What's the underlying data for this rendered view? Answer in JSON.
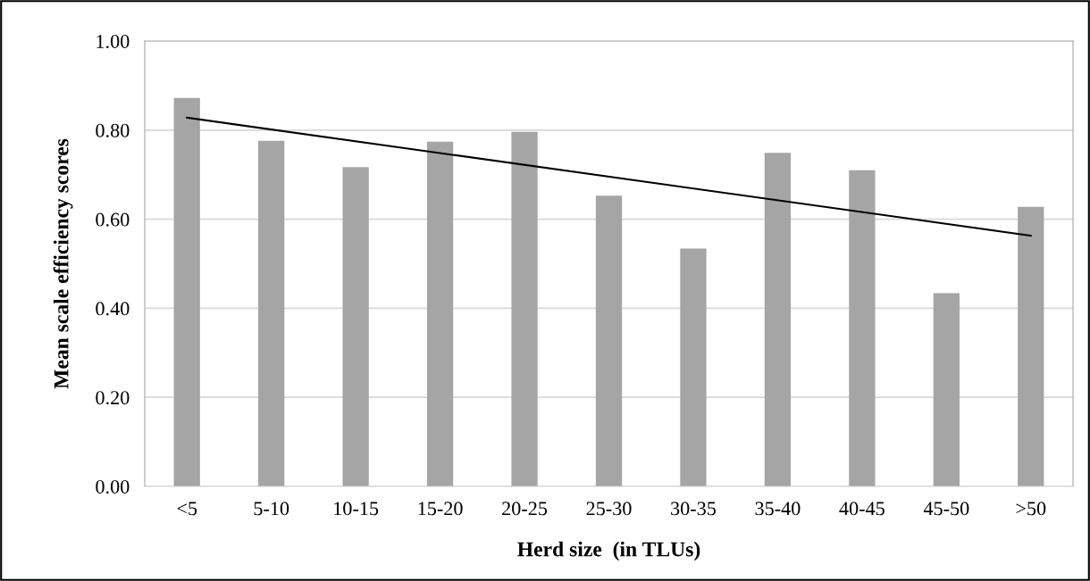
{
  "chart_data": {
    "type": "bar",
    "xlabel": "Herd size  (in TLUs)",
    "ylabel": "Mean scale efficiency scores",
    "categories": [
      "<5",
      "5-10",
      "10-15",
      "15-20",
      "20-25",
      "25-30",
      "30-35",
      "35-40",
      "40-45",
      "45-50",
      ">50"
    ],
    "series": [
      {
        "color": "#a5a5a5",
        "values": [
          0.872,
          0.776,
          0.717,
          0.774,
          0.796,
          0.653,
          0.534,
          0.749,
          0.71,
          0.434,
          0.628
        ]
      },
      {
        "type": "line",
        "color": "#000000",
        "values": [
          0.828,
          null,
          null,
          null,
          null,
          null,
          null,
          null,
          null,
          null,
          0.563
        ]
      }
    ],
    "ylim": [
      0,
      1
    ],
    "yticks": [
      {
        "value": 0,
        "label": "0.00"
      },
      {
        "value": 0.2,
        "label": "0.20"
      },
      {
        "value": 0.4,
        "label": "0.40"
      },
      {
        "value": 0.6,
        "label": "0.60"
      },
      {
        "value": 0.8,
        "label": "0.80"
      },
      {
        "value": 1,
        "label": "1.00"
      }
    ],
    "grid": "y",
    "legend": false
  }
}
